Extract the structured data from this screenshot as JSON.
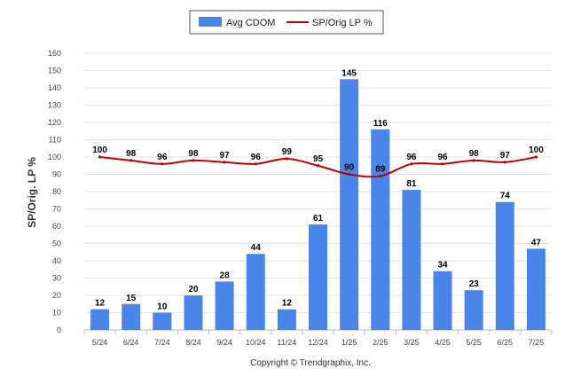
{
  "chart_data": {
    "type": "bar",
    "categories": [
      "5/24",
      "6/24",
      "7/24",
      "8/24",
      "9/24",
      "10/24",
      "11/24",
      "12/24",
      "1/25",
      "2/25",
      "3/25",
      "4/25",
      "5/25",
      "6/25",
      "7/25"
    ],
    "series": [
      {
        "name": "Avg CDOM",
        "type": "bar",
        "color": "#4a86e8",
        "values": [
          12,
          15,
          10,
          20,
          28,
          44,
          12,
          61,
          145,
          116,
          81,
          34,
          23,
          74,
          47
        ]
      },
      {
        "name": "SP/Orig LP %",
        "type": "line",
        "color": "#c00000",
        "values": [
          100,
          98,
          96,
          98,
          97,
          96,
          99,
          95,
          90,
          89,
          96,
          96,
          98,
          97,
          100
        ]
      }
    ],
    "ylabel": "SP/Orig. LP %",
    "ylim": [
      0,
      160
    ],
    "yticks": [
      0,
      10,
      20,
      30,
      40,
      50,
      60,
      70,
      80,
      90,
      100,
      110,
      120,
      130,
      140,
      150,
      160
    ],
    "grid": true,
    "legend_position": "top-center"
  },
  "credit": "Copyright © Trendgraphix, Inc."
}
